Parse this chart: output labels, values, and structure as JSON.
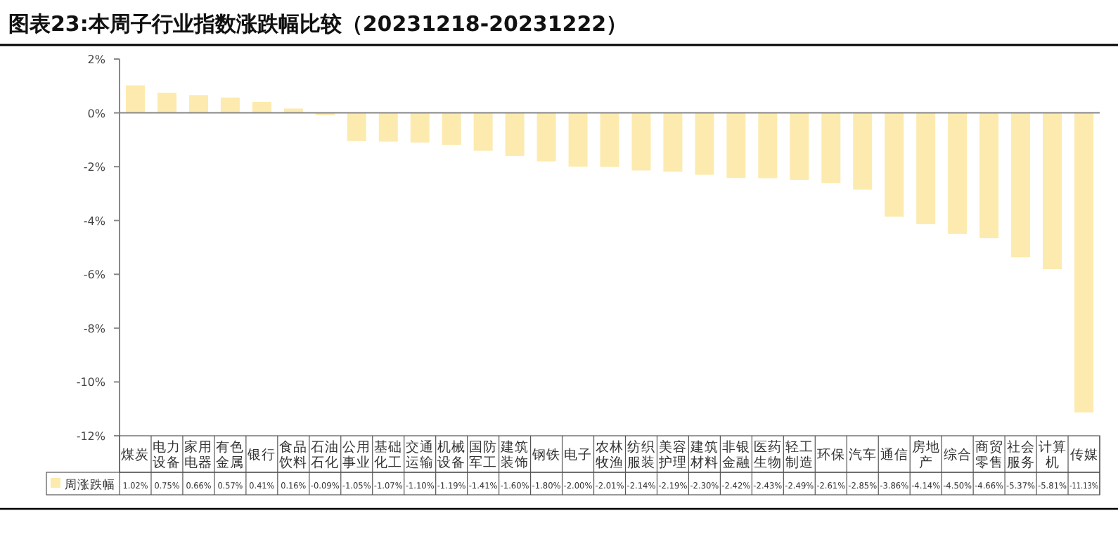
{
  "chart_data": {
    "type": "bar",
    "title": "图表23:本周子行业指数涨跌幅比较（20231218-20231222）",
    "categories": [
      "煤炭",
      "电力设备",
      "家用电器",
      "有色金属",
      "银行",
      "食品饮料",
      "石油石化",
      "公用事业",
      "基础化工",
      "交通运输",
      "机械设备",
      "国防军工",
      "建筑装饰",
      "钢铁",
      "电子",
      "农林牧渔",
      "纺织服装",
      "美容护理",
      "建筑材料",
      "非银金融",
      "医药生物",
      "轻工制造",
      "环保",
      "汽车",
      "通信",
      "房地产",
      "综合",
      "商贸零售",
      "社会服务",
      "计算机",
      "传媒"
    ],
    "series": [
      {
        "name": "周涨跌幅",
        "color": "#fdeaae",
        "values": [
          1.02,
          0.75,
          0.66,
          0.57,
          0.41,
          0.16,
          -0.09,
          -1.05,
          -1.07,
          -1.1,
          -1.19,
          -1.41,
          -1.6,
          -1.8,
          -2.0,
          -2.01,
          -2.14,
          -2.19,
          -2.3,
          -2.42,
          -2.43,
          -2.49,
          -2.61,
          -2.85,
          -3.86,
          -4.14,
          -4.5,
          -4.66,
          -5.37,
          -5.81,
          -11.13
        ],
        "value_labels": [
          "1.02%",
          "0.75%",
          "0.66%",
          "0.57%",
          "0.41%",
          "0.16%",
          "-0.09%",
          "-1.05%",
          "-1.07%",
          "-1.10%",
          "-1.19%",
          "-1.41%",
          "-1.60%",
          "-1.80%",
          "-2.00%",
          "-2.01%",
          "-2.14%",
          "-2.19%",
          "-2.30%",
          "-2.42%",
          "-2.43%",
          "-2.49%",
          "-2.61%",
          "-2.85%",
          "-3.86%",
          "-4.14%",
          "-4.50%",
          "-4.66%",
          "-5.37%",
          "-5.81%",
          "-11.13%"
        ]
      }
    ],
    "ylim": [
      -12,
      2
    ],
    "yticks": [
      {
        "value": 2,
        "label": "2%"
      },
      {
        "value": 0,
        "label": "0%"
      },
      {
        "value": -2,
        "label": "-2%"
      },
      {
        "value": -4,
        "label": "-4%"
      },
      {
        "value": -6,
        "label": "-6%"
      },
      {
        "value": -8,
        "label": "-8%"
      },
      {
        "value": -10,
        "label": "-10%"
      },
      {
        "value": -12,
        "label": "-12%"
      }
    ],
    "legend": "bottom left"
  }
}
